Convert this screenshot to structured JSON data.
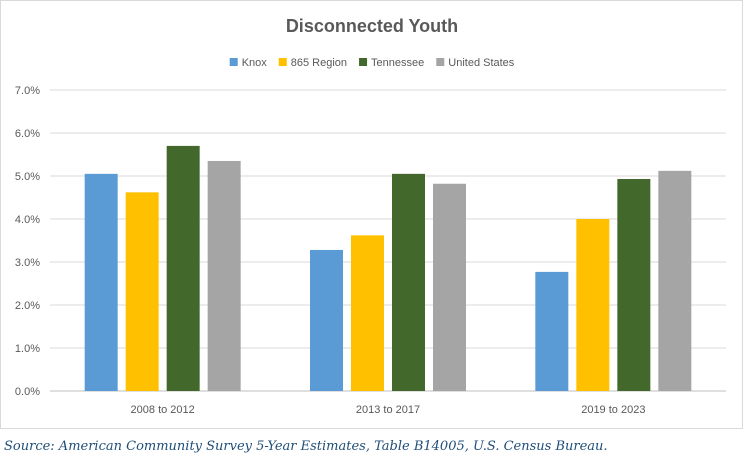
{
  "chart_data": {
    "type": "bar",
    "title": "Disconnected Youth",
    "categories": [
      "2008 to 2012",
      "2013 to 2017",
      "2019 to 2023"
    ],
    "series": [
      {
        "name": "Knox",
        "color": "#5b9bd5",
        "values": [
          5.05,
          3.28,
          2.77
        ]
      },
      {
        "name": "865 Region",
        "color": "#ffc000",
        "values": [
          4.62,
          3.62,
          4.0
        ]
      },
      {
        "name": "Tennessee",
        "color": "#43682b",
        "values": [
          5.7,
          5.05,
          4.93
        ]
      },
      {
        "name": "United States",
        "color": "#a5a5a5",
        "values": [
          5.35,
          4.82,
          5.12
        ]
      }
    ],
    "ylim": [
      0,
      7
    ],
    "yticks": [
      "0.0%",
      "1.0%",
      "2.0%",
      "3.0%",
      "4.0%",
      "5.0%",
      "6.0%",
      "7.0%"
    ],
    "y_unit": "percent",
    "grid": true,
    "legend_position": "top"
  },
  "source": "Source: American Community Survey 5-Year Estimates, Table B14005, U.S. Census Bureau."
}
